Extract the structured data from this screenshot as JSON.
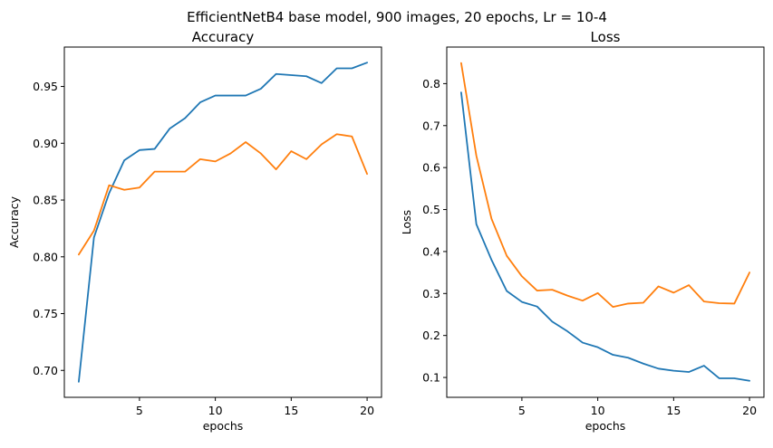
{
  "figure": {
    "title": "EfficientNetB4 base model, 900 images, 20 epochs, Lr = 10-4"
  },
  "colors": {
    "series_a": "#1f77b4",
    "series_b": "#ff7f0e"
  },
  "chart_data": [
    {
      "type": "line",
      "title": "Accuracy",
      "xlabel": "epochs",
      "ylabel": "Accuracy",
      "xlim": [
        0.05,
        20.95
      ],
      "ylim": [
        0.6763,
        0.9847
      ],
      "xticks": [
        5,
        10,
        15,
        20
      ],
      "xtick_labels": [
        "5",
        "10",
        "15",
        "20"
      ],
      "yticks": [
        0.7,
        0.75,
        0.8,
        0.85,
        0.9,
        0.95
      ],
      "ytick_labels": [
        "0.70",
        "0.75",
        "0.80",
        "0.85",
        "0.90",
        "0.95"
      ],
      "grid": false,
      "x": [
        1,
        2,
        3,
        4,
        5,
        6,
        7,
        8,
        9,
        10,
        11,
        12,
        13,
        14,
        15,
        16,
        17,
        18,
        19,
        20
      ],
      "series": [
        {
          "values": [
            0.69,
            0.817,
            0.856,
            0.885,
            0.894,
            0.895,
            0.913,
            0.922,
            0.936,
            0.942,
            0.942,
            0.942,
            0.948,
            0.961,
            0.96,
            0.959,
            0.953,
            0.966,
            0.966,
            0.971
          ],
          "color": "#1f77b4"
        },
        {
          "values": [
            0.802,
            0.823,
            0.863,
            0.859,
            0.861,
            0.875,
            0.875,
            0.875,
            0.886,
            0.884,
            0.891,
            0.901,
            0.891,
            0.877,
            0.893,
            0.886,
            0.899,
            0.908,
            0.906,
            0.873
          ],
          "color": "#ff7f0e"
        }
      ]
    },
    {
      "type": "line",
      "title": "Loss",
      "xlabel": "epochs",
      "ylabel": "Loss",
      "xlim": [
        0.05,
        20.95
      ],
      "ylim": [
        0.0527,
        0.8871
      ],
      "xticks": [
        5,
        10,
        15,
        20
      ],
      "xtick_labels": [
        "5",
        "10",
        "15",
        "20"
      ],
      "yticks": [
        0.1,
        0.2,
        0.3,
        0.4,
        0.5,
        0.6,
        0.7,
        0.8
      ],
      "ytick_labels": [
        "0.1",
        "0.2",
        "0.3",
        "0.4",
        "0.5",
        "0.6",
        "0.7",
        "0.8"
      ],
      "grid": false,
      "x": [
        1,
        2,
        3,
        4,
        5,
        6,
        7,
        8,
        9,
        10,
        11,
        12,
        13,
        14,
        15,
        16,
        17,
        18,
        19,
        20
      ],
      "series": [
        {
          "values": [
            0.779,
            0.465,
            0.38,
            0.306,
            0.28,
            0.269,
            0.233,
            0.21,
            0.183,
            0.172,
            0.154,
            0.147,
            0.133,
            0.121,
            0.116,
            0.113,
            0.128,
            0.098,
            0.098,
            0.092
          ],
          "color": "#1f77b4"
        },
        {
          "values": [
            0.849,
            0.628,
            0.478,
            0.39,
            0.341,
            0.307,
            0.309,
            0.295,
            0.283,
            0.301,
            0.268,
            0.276,
            0.278,
            0.317,
            0.302,
            0.32,
            0.281,
            0.277,
            0.276,
            0.35
          ],
          "color": "#ff7f0e"
        }
      ]
    }
  ]
}
